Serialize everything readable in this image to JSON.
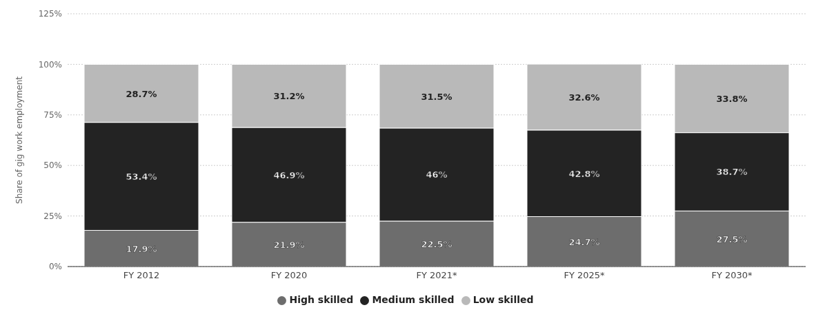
{
  "chart_data": {
    "type": "bar",
    "stacked": true,
    "ylabel": "Share of gig work employment",
    "categories": [
      "FY 2012",
      "FY 2020",
      "FY 2021*",
      "FY 2025*",
      "FY 2030*"
    ],
    "series": [
      {
        "name": "High skilled",
        "color": "#6d6d6d",
        "values": [
          17.9,
          21.9,
          22.5,
          24.7,
          27.5
        ],
        "value_labels": [
          "17.9%",
          "21.9%",
          "22.5%",
          "24.7%",
          "27.5%"
        ]
      },
      {
        "name": "Medium skilled",
        "color": "#232323",
        "values": [
          53.4,
          46.9,
          46,
          42.8,
          38.7
        ],
        "value_labels": [
          "53.4%",
          "46.9%",
          "46%",
          "42.8%",
          "38.7%"
        ]
      },
      {
        "name": "Low skilled",
        "color": "#b9b9b9",
        "values": [
          28.7,
          31.2,
          31.5,
          32.6,
          33.8
        ],
        "value_labels": [
          "28.7%",
          "31.2%",
          "31.5%",
          "32.6%",
          "33.8%"
        ]
      }
    ],
    "ylim": [
      0,
      125
    ],
    "yticks": [
      {
        "value": 0,
        "label": "0%"
      },
      {
        "value": 25,
        "label": "25%"
      },
      {
        "value": 50,
        "label": "50%"
      },
      {
        "value": 75,
        "label": "75%"
      },
      {
        "value": 100,
        "label": "100%"
      },
      {
        "value": 125,
        "label": "125%"
      }
    ],
    "grid": "y",
    "legend": "bottom"
  }
}
